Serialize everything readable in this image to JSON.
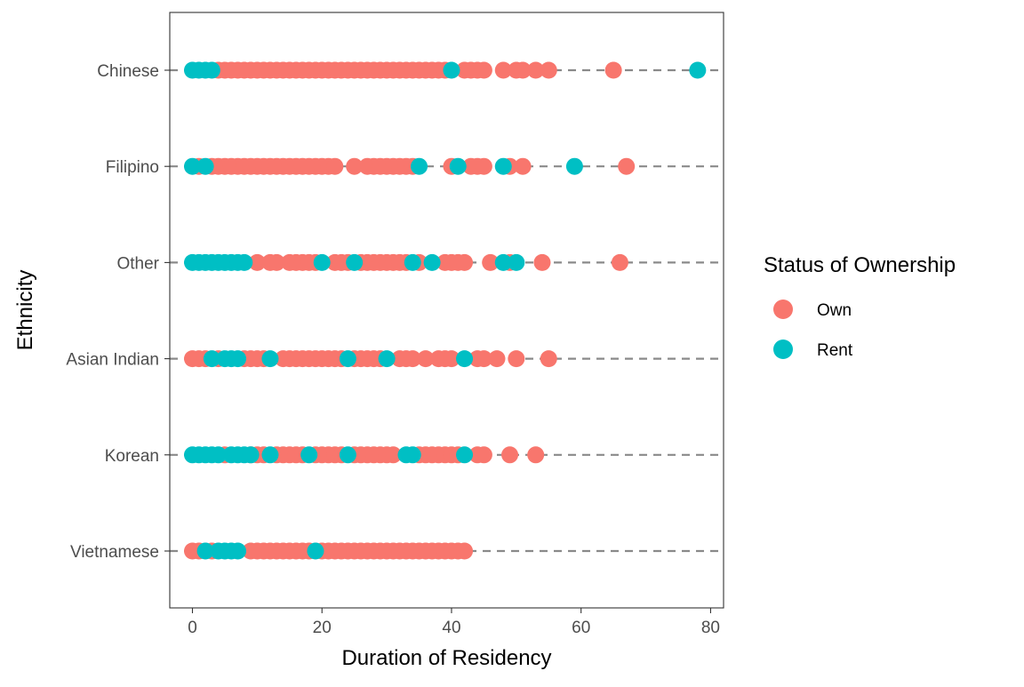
{
  "chart_data": {
    "type": "scatter",
    "xlabel": "Duration of Residency",
    "ylabel": "Ethnicity",
    "xlim": [
      -3.5,
      82
    ],
    "x_ticks": [
      0,
      20,
      40,
      60,
      80
    ],
    "x_tick_labels": [
      "0",
      "20",
      "40",
      "60",
      "80"
    ],
    "categories": [
      "Chinese",
      "Filipino",
      "Other",
      "Asian Indian",
      "Korean",
      "Vietnamese"
    ],
    "grid": false,
    "reference_lines": "dashed grey horizontal line at each category",
    "legend": {
      "title": "Status of Ownership",
      "position": "right",
      "entries": [
        {
          "label": "Own",
          "color": "#F8766D"
        },
        {
          "label": "Rent",
          "color": "#00BFC4"
        }
      ]
    },
    "series": [
      {
        "name": "Own",
        "color": "#F8766D",
        "points": {
          "Chinese": [
            4,
            5,
            6,
            7,
            8,
            9,
            10,
            11,
            12,
            13,
            14,
            15,
            16,
            17,
            18,
            19,
            20,
            21,
            22,
            23,
            24,
            25,
            26,
            27,
            28,
            29,
            30,
            31,
            32,
            33,
            34,
            35,
            36,
            37,
            38,
            39,
            42,
            43,
            44,
            45,
            48,
            50,
            51,
            53,
            55,
            65
          ],
          "Filipino": [
            1,
            3,
            4,
            5,
            6,
            7,
            8,
            9,
            10,
            11,
            12,
            13,
            14,
            15,
            16,
            17,
            18,
            19,
            20,
            21,
            22,
            25,
            27,
            28,
            29,
            30,
            31,
            32,
            33,
            34,
            40,
            43,
            44,
            45,
            49,
            51,
            67
          ],
          "Other": [
            10,
            12,
            13,
            15,
            16,
            17,
            18,
            19,
            22,
            23,
            24,
            26,
            27,
            28,
            29,
            30,
            31,
            32,
            33,
            35,
            39,
            40,
            41,
            42,
            46,
            49,
            54,
            66
          ],
          "Asian Indian": [
            0,
            1,
            2,
            4,
            8,
            9,
            10,
            11,
            14,
            15,
            16,
            17,
            18,
            19,
            20,
            21,
            22,
            23,
            25,
            26,
            27,
            28,
            29,
            32,
            33,
            34,
            36,
            38,
            39,
            40,
            44,
            45,
            47,
            50,
            55
          ],
          "Korean": [
            5,
            9,
            10,
            11,
            13,
            14,
            15,
            16,
            17,
            19,
            20,
            21,
            22,
            23,
            25,
            26,
            27,
            28,
            29,
            30,
            31,
            35,
            36,
            37,
            38,
            39,
            40,
            41,
            44,
            45,
            49,
            53
          ],
          "Vietnamese": [
            0,
            1,
            3,
            9,
            10,
            11,
            12,
            13,
            14,
            15,
            16,
            17,
            18,
            20,
            21,
            22,
            23,
            24,
            25,
            26,
            27,
            28,
            29,
            30,
            31,
            32,
            33,
            34,
            35,
            36,
            37,
            38,
            39,
            40,
            41,
            42
          ]
        }
      },
      {
        "name": "Rent",
        "color": "#00BFC4",
        "points": {
          "Chinese": [
            0,
            1,
            2,
            3,
            40,
            78
          ],
          "Filipino": [
            0,
            2,
            35,
            41,
            48,
            59
          ],
          "Other": [
            0,
            1,
            2,
            3,
            4,
            5,
            6,
            7,
            8,
            20,
            25,
            34,
            37,
            48,
            50
          ],
          "Asian Indian": [
            3,
            5,
            6,
            7,
            12,
            24,
            30,
            42
          ],
          "Korean": [
            0,
            1,
            2,
            3,
            4,
            6,
            7,
            8,
            9,
            12,
            18,
            24,
            33,
            34,
            42
          ],
          "Vietnamese": [
            2,
            4,
            5,
            6,
            7,
            19
          ]
        }
      }
    ]
  }
}
